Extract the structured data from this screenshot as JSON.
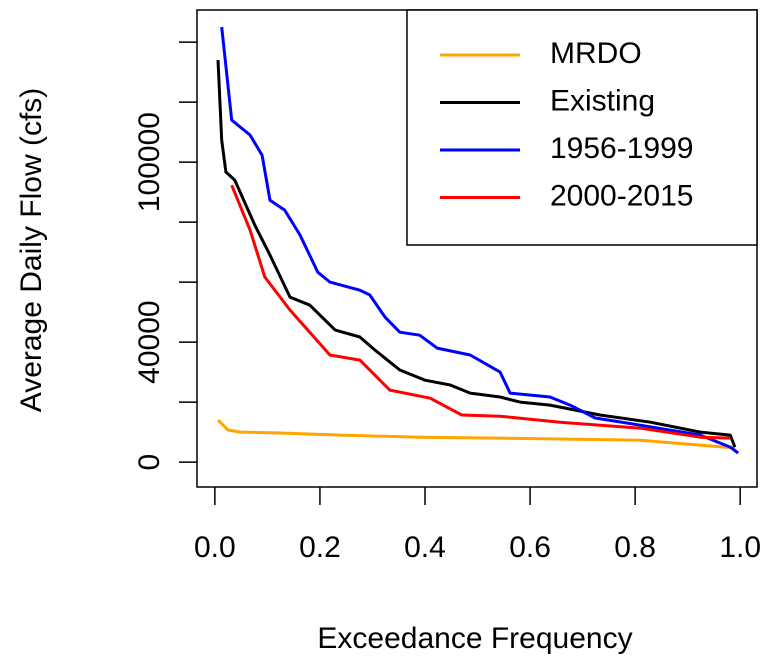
{
  "chart_data": {
    "type": "line",
    "x_label": "Exceedance Frequency",
    "y_label": "Average Daily Flow (cfs)",
    "xlim": [
      -0.034,
      1.032
    ],
    "ylim": [
      -8300,
      150700
    ],
    "xticks": [
      {
        "value": 0,
        "label": "0.0"
      },
      0.2,
      0.4,
      0.6,
      0.8,
      {
        "value": 1,
        "label": "1.0"
      }
    ],
    "yticks": [
      0,
      {
        "value": 20000
      },
      40000,
      {
        "value": 60000
      },
      {
        "value": 80000
      },
      100000,
      {
        "value": 120000
      },
      {
        "value": 140000
      }
    ],
    "legend": "topright",
    "series": [
      {
        "name": "MRDO",
        "color": "#ffa500",
        "x": [
          0.006,
          0.025,
          0.048,
          0.124,
          0.24,
          0.39,
          0.54,
          0.81,
          0.92,
          0.99
        ],
        "values": [
          14000,
          10700,
          10000,
          9700,
          9000,
          8300,
          8000,
          7300,
          5700,
          4700
        ]
      },
      {
        "name": "Existing",
        "color": "#000000",
        "x": [
          0.006,
          0.013,
          0.021,
          0.038,
          0.076,
          0.105,
          0.143,
          0.181,
          0.2,
          0.229,
          0.276,
          0.305,
          0.352,
          0.4,
          0.448,
          0.486,
          0.543,
          0.581,
          0.638,
          0.733,
          0.829,
          0.924,
          0.981,
          0.99
        ],
        "values": [
          134000,
          107300,
          96700,
          94000,
          79000,
          69000,
          55000,
          52300,
          49000,
          44000,
          41700,
          37300,
          30700,
          27300,
          25700,
          23000,
          21700,
          20000,
          19000,
          15700,
          13300,
          10000,
          9000,
          5000
        ]
      },
      {
        "name": "1956-1999",
        "color": "#0000ff",
        "x": [
          0.013,
          0.032,
          0.067,
          0.09,
          0.105,
          0.133,
          0.162,
          0.196,
          0.219,
          0.276,
          0.295,
          0.324,
          0.352,
          0.39,
          0.423,
          0.486,
          0.543,
          0.562,
          0.638,
          0.676,
          0.724,
          0.81,
          0.924,
          0.981,
          0.996
        ],
        "values": [
          145000,
          114000,
          109000,
          102300,
          87300,
          84000,
          75700,
          63300,
          60000,
          57300,
          55700,
          48300,
          43300,
          42300,
          38000,
          35700,
          30000,
          23000,
          21700,
          19000,
          14700,
          12300,
          9000,
          5000,
          3000
        ]
      },
      {
        "name": "2000-2015",
        "color": "#ff0000",
        "x": [
          0.032,
          0.067,
          0.095,
          0.143,
          0.219,
          0.276,
          0.333,
          0.41,
          0.47,
          0.543,
          0.657,
          0.81,
          0.924,
          0.981
        ],
        "values": [
          92300,
          77300,
          61700,
          50700,
          35700,
          34000,
          24000,
          21300,
          15700,
          15300,
          13300,
          11300,
          8300,
          8000
        ]
      }
    ]
  }
}
